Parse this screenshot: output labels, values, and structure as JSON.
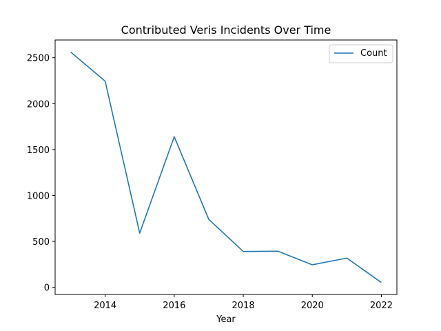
{
  "chart_data": {
    "type": "line",
    "title": "Contributed Veris Incidents Over Time",
    "xlabel": "Year",
    "ylabel": "",
    "x": [
      2013,
      2014,
      2015,
      2016,
      2017,
      2018,
      2019,
      2020,
      2021,
      2022
    ],
    "series": [
      {
        "name": "Count",
        "color": "#1f77b4",
        "values": [
          2562,
          2244,
          590,
          1640,
          740,
          390,
          393,
          245,
          318,
          52
        ]
      }
    ],
    "xlim": [
      2012.55,
      2022.45
    ],
    "ylim": [
      -78,
      2693
    ],
    "xticks": [
      2014,
      2016,
      2018,
      2020,
      2022
    ],
    "xtick_labels": [
      "2014",
      "2016",
      "2018",
      "2020",
      "2022"
    ],
    "yticks": [
      0,
      500,
      1000,
      1500,
      2000,
      2500
    ],
    "ytick_labels": [
      "0",
      "500",
      "1000",
      "1500",
      "2000",
      "2500"
    ],
    "grid": false,
    "legend_position": "upper-right"
  }
}
